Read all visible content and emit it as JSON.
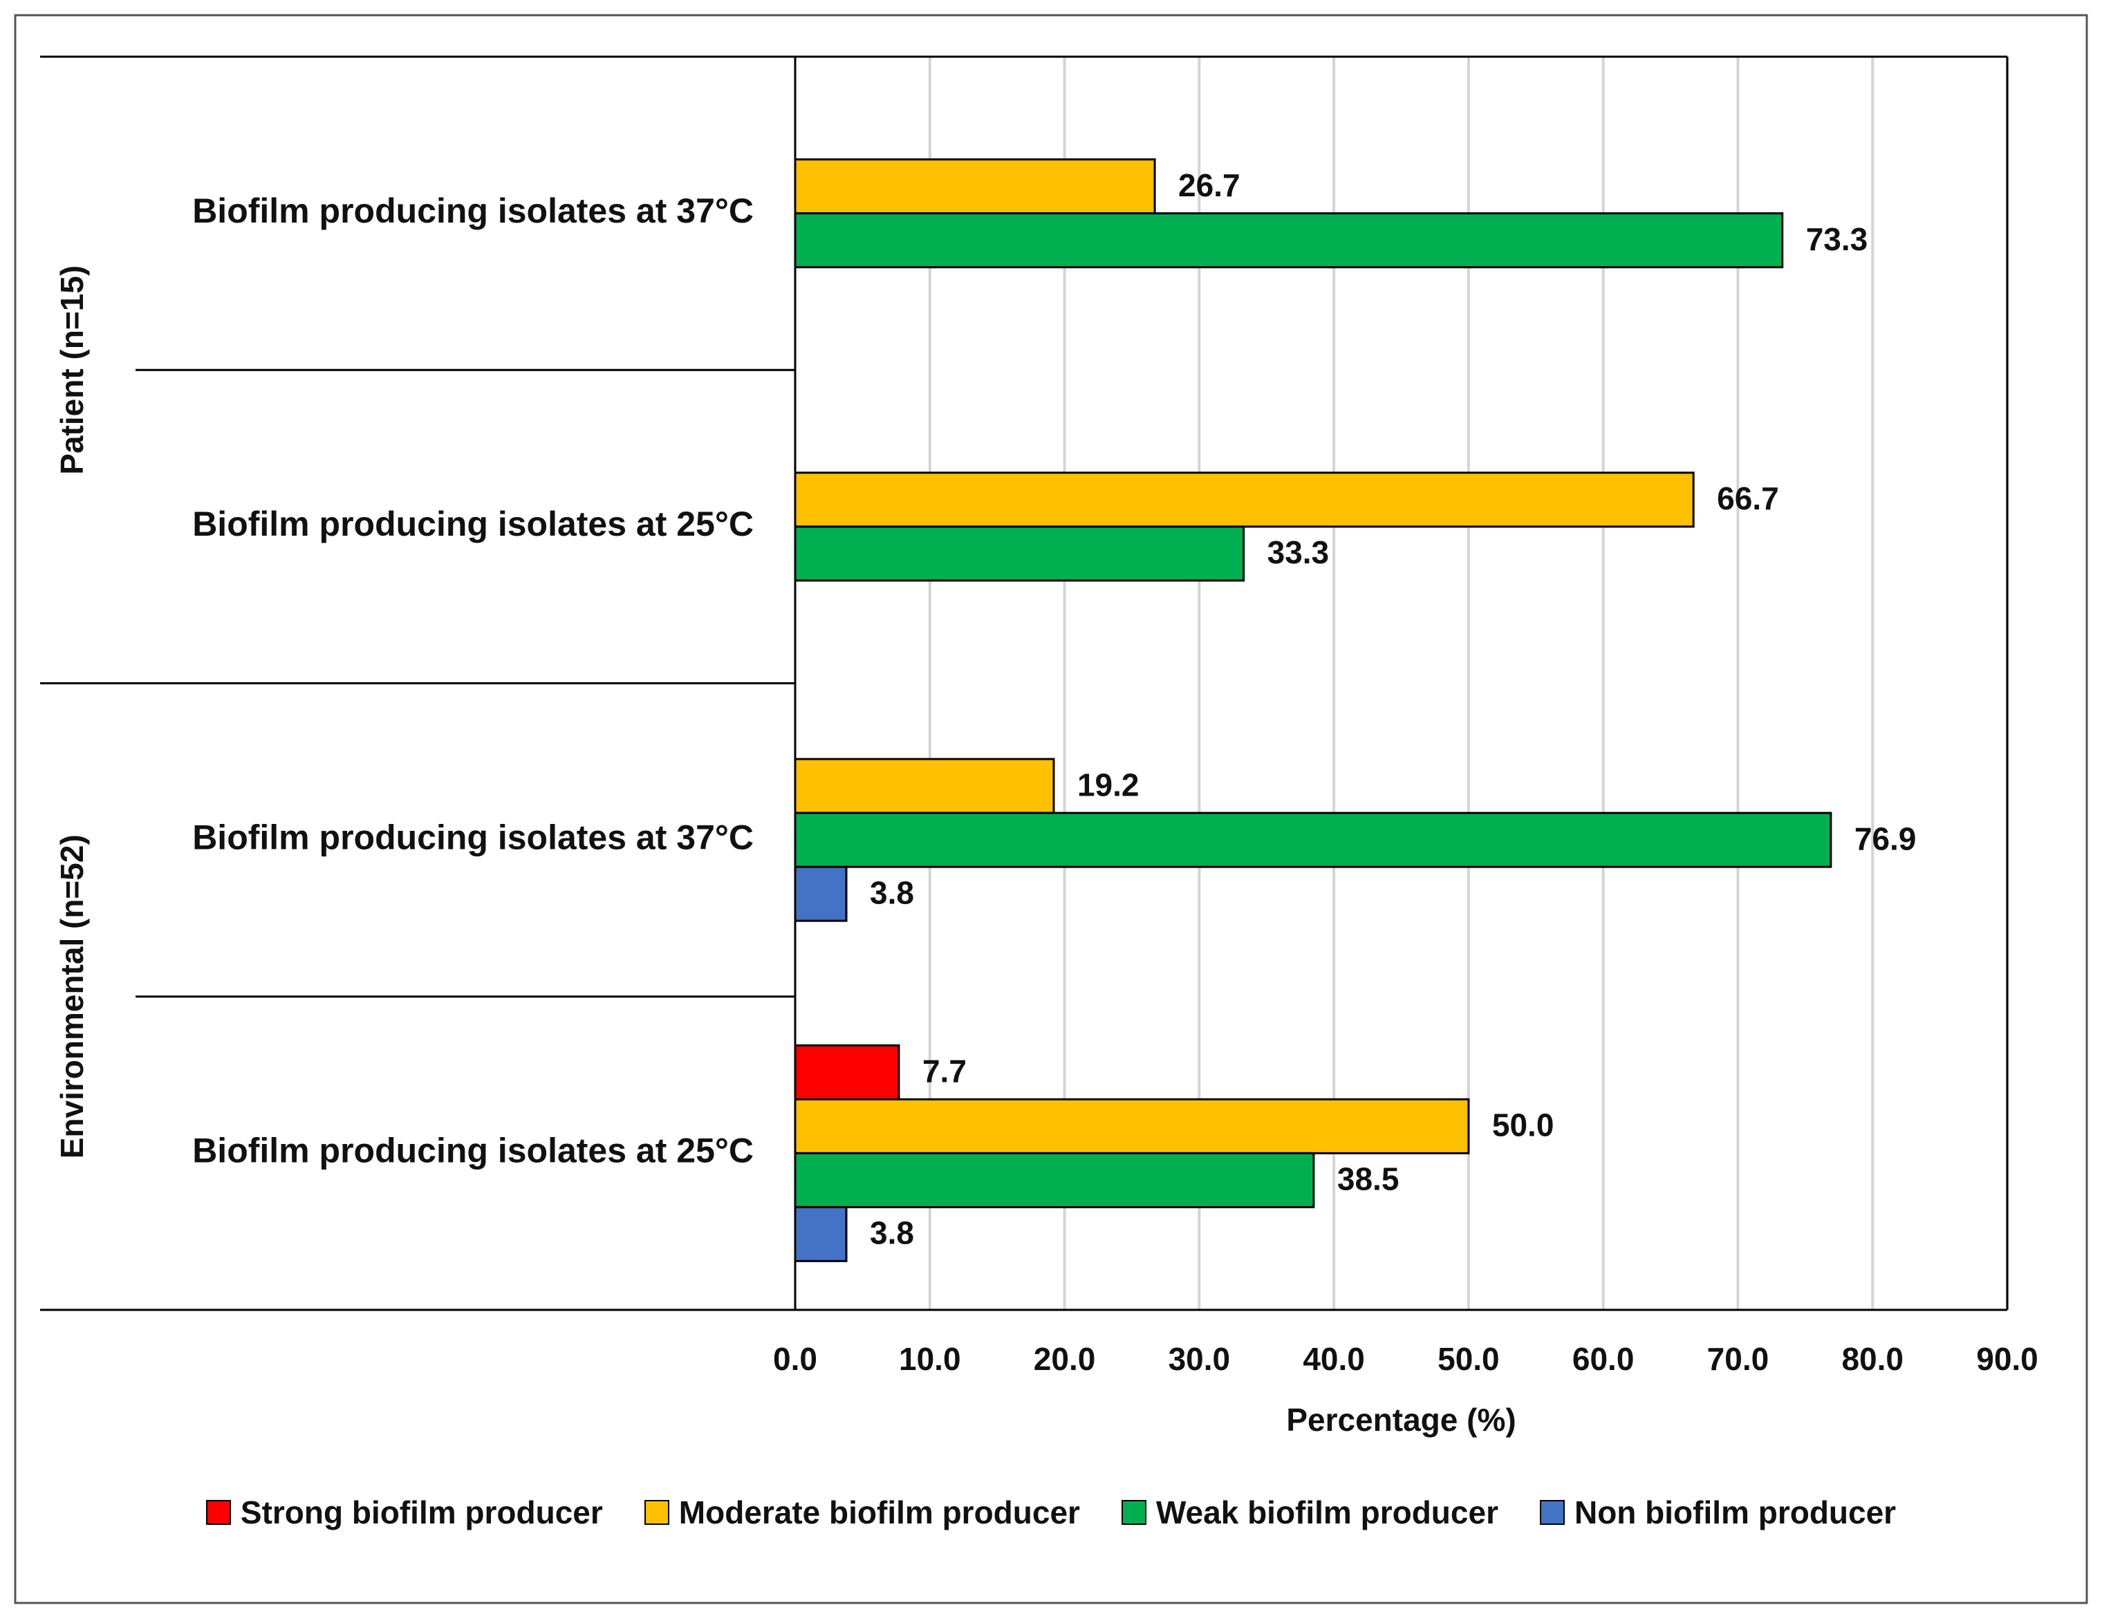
{
  "chart_data": {
    "type": "bar",
    "orientation": "horizontal",
    "xlabel": "Percentage (%)",
    "xlim": [
      0,
      90
    ],
    "x_ticks": [
      "0.0",
      "10.0",
      "20.0",
      "30.0",
      "40.0",
      "50.0",
      "60.0",
      "70.0",
      "80.0",
      "90.0"
    ],
    "grid": "vertical",
    "legend_position": "bottom",
    "groups": [
      {
        "name": "Patient (n=15)",
        "categories": [
          {
            "label": "Biofilm producing isolates at 37°C",
            "bars": [
              {
                "series": "Moderate biofilm producer",
                "value": 26.7,
                "label": "26.7"
              },
              {
                "series": "Weak biofilm producer",
                "value": 73.3,
                "label": "73.3"
              }
            ]
          },
          {
            "label": "Biofilm producing isolates at 25°C",
            "bars": [
              {
                "series": "Moderate biofilm producer",
                "value": 66.7,
                "label": "66.7"
              },
              {
                "series": "Weak biofilm producer",
                "value": 33.3,
                "label": "33.3"
              }
            ]
          }
        ]
      },
      {
        "name": "Environmental (n=52)",
        "categories": [
          {
            "label": "Biofilm producing isolates at 37°C",
            "bars": [
              {
                "series": "Moderate biofilm producer",
                "value": 19.2,
                "label": "19.2"
              },
              {
                "series": "Weak biofilm producer",
                "value": 76.9,
                "label": "76.9"
              },
              {
                "series": "Non biofilm producer",
                "value": 3.8,
                "label": "3.8"
              }
            ]
          },
          {
            "label": "Biofilm producing isolates at 25°C",
            "bars": [
              {
                "series": "Strong biofilm producer",
                "value": 7.7,
                "label": "7.7"
              },
              {
                "series": "Moderate biofilm producer",
                "value": 50.0,
                "label": "50.0"
              },
              {
                "series": "Weak biofilm producer",
                "value": 38.5,
                "label": "38.5"
              },
              {
                "series": "Non biofilm producer",
                "value": 3.8,
                "label": "3.8"
              }
            ]
          }
        ]
      }
    ],
    "series": [
      {
        "name": "Strong biofilm producer",
        "color": "#ff0000"
      },
      {
        "name": "Moderate biofilm producer",
        "color": "#ffc000"
      },
      {
        "name": "Weak biofilm producer",
        "color": "#00b050"
      },
      {
        "name": "Non biofilm producer",
        "color": "#4472c4"
      }
    ]
  }
}
